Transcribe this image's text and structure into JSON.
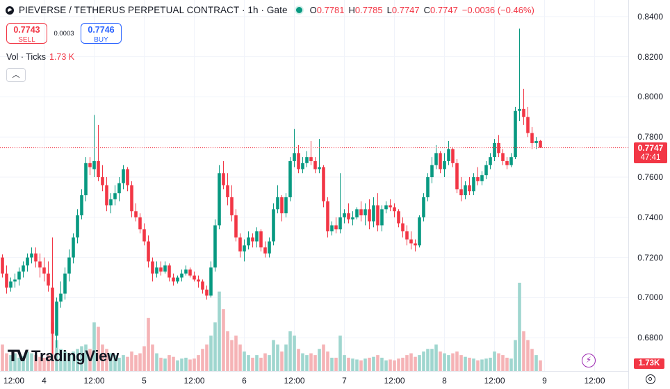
{
  "header": {
    "title": "PIEVERSE / TETHERUS PERPETUAL CONTRACT · 1h · Gate",
    "ohlc": {
      "o_label": "O",
      "o": "0.7781",
      "h_label": "H",
      "h": "0.7785",
      "l_label": "L",
      "l": "0.7747",
      "c_label": "C",
      "c": "0.7747",
      "change": "−0.0036 (−0.46%)"
    }
  },
  "trade": {
    "sell_price": "0.7743",
    "sell_label": "SELL",
    "spread": "0.0003",
    "buy_price": "0.7746",
    "buy_label": "BUY"
  },
  "volume_legend": {
    "label": "Vol · Ticks",
    "value": "1.73 K"
  },
  "collapse_icon": "chevron-up-icon",
  "last_price": {
    "price": "0.7747",
    "countdown": "47:41"
  },
  "volume_tag": "1.73K",
  "logo_text": "TradingView",
  "colors": {
    "up": "#089981",
    "down": "#f23645",
    "up_vol": "#9fd6cf",
    "down_vol": "#f5b3b6",
    "buy": "#2962ff"
  },
  "chart_data": {
    "type": "candlestick",
    "price_axis": {
      "ticks": [
        "0.8400",
        "0.8200",
        "0.8000",
        "0.7800",
        "0.7600",
        "0.7400",
        "0.7200",
        "0.7000",
        "0.6800"
      ],
      "range": [
        0.6735,
        0.8455
      ]
    },
    "time_axis": {
      "ticks": [
        {
          "i": -2,
          "label": "12:00"
        },
        {
          "i": 10,
          "label": "4"
        },
        {
          "i": 22,
          "label": "12:00"
        },
        {
          "i": 34,
          "label": "5"
        },
        {
          "i": 46,
          "label": "12:00"
        },
        {
          "i": 58,
          "label": "6"
        },
        {
          "i": 70,
          "label": "12:00"
        },
        {
          "i": 82,
          "label": "7"
        },
        {
          "i": 94,
          "label": "12:00"
        },
        {
          "i": 106,
          "label": "8"
        },
        {
          "i": 118,
          "label": "12:00"
        },
        {
          "i": 130,
          "label": "9"
        },
        {
          "i": 142,
          "label": "12:00"
        }
      ]
    },
    "candles": [
      [
        0.72,
        0.7215,
        0.71,
        0.712
      ],
      [
        0.712,
        0.716,
        0.702,
        0.705
      ],
      [
        0.705,
        0.71,
        0.703,
        0.708
      ],
      [
        0.708,
        0.712,
        0.705,
        0.709
      ],
      [
        0.709,
        0.715,
        0.706,
        0.713
      ],
      [
        0.713,
        0.718,
        0.71,
        0.716
      ],
      [
        0.716,
        0.722,
        0.713,
        0.72
      ],
      [
        0.72,
        0.725,
        0.717,
        0.722
      ],
      [
        0.722,
        0.725,
        0.715,
        0.718
      ],
      [
        0.718,
        0.722,
        0.71,
        0.715
      ],
      [
        0.715,
        0.72,
        0.708,
        0.712
      ],
      [
        0.712,
        0.718,
        0.703,
        0.706
      ],
      [
        0.705,
        0.73,
        0.672,
        0.682
      ],
      [
        0.681,
        0.7,
        0.675,
        0.698
      ],
      [
        0.698,
        0.708,
        0.695,
        0.702
      ],
      [
        0.702,
        0.715,
        0.699,
        0.712
      ],
      [
        0.712,
        0.724,
        0.708,
        0.72
      ],
      [
        0.72,
        0.732,
        0.717,
        0.73
      ],
      [
        0.73,
        0.744,
        0.727,
        0.741
      ],
      [
        0.741,
        0.754,
        0.739,
        0.751
      ],
      [
        0.751,
        0.77,
        0.748,
        0.767
      ],
      [
        0.767,
        0.77,
        0.761,
        0.765
      ],
      [
        0.764,
        0.791,
        0.76,
        0.768
      ],
      [
        0.768,
        0.786,
        0.758,
        0.76
      ],
      [
        0.76,
        0.766,
        0.753,
        0.756
      ],
      [
        0.756,
        0.76,
        0.743,
        0.746
      ],
      [
        0.746,
        0.752,
        0.742,
        0.749
      ],
      [
        0.749,
        0.756,
        0.746,
        0.752
      ],
      [
        0.752,
        0.76,
        0.748,
        0.757
      ],
      [
        0.757,
        0.766,
        0.754,
        0.764
      ],
      [
        0.764,
        0.765,
        0.753,
        0.756
      ],
      [
        0.756,
        0.758,
        0.74,
        0.743
      ],
      [
        0.743,
        0.747,
        0.738,
        0.74
      ],
      [
        0.74,
        0.742,
        0.732,
        0.734
      ],
      [
        0.734,
        0.737,
        0.726,
        0.728
      ],
      [
        0.728,
        0.731,
        0.715,
        0.718
      ],
      [
        0.718,
        0.72,
        0.708,
        0.712
      ],
      [
        0.712,
        0.718,
        0.71,
        0.715
      ],
      [
        0.715,
        0.718,
        0.711,
        0.713
      ],
      [
        0.713,
        0.718,
        0.712,
        0.716
      ],
      [
        0.716,
        0.717,
        0.708,
        0.71
      ],
      [
        0.71,
        0.712,
        0.706,
        0.708
      ],
      [
        0.708,
        0.711,
        0.707,
        0.71
      ],
      [
        0.71,
        0.714,
        0.708,
        0.712
      ],
      [
        0.712,
        0.716,
        0.711,
        0.714
      ],
      [
        0.714,
        0.715,
        0.71,
        0.711
      ],
      [
        0.711,
        0.713,
        0.708,
        0.709
      ],
      [
        0.709,
        0.711,
        0.705,
        0.708
      ],
      [
        0.708,
        0.709,
        0.702,
        0.704
      ],
      [
        0.704,
        0.706,
        0.699,
        0.701
      ],
      [
        0.701,
        0.718,
        0.7,
        0.715
      ],
      [
        0.715,
        0.739,
        0.713,
        0.736
      ],
      [
        0.736,
        0.766,
        0.734,
        0.762
      ],
      [
        0.762,
        0.768,
        0.754,
        0.756
      ],
      [
        0.756,
        0.762,
        0.746,
        0.75
      ],
      [
        0.75,
        0.756,
        0.738,
        0.741
      ],
      [
        0.741,
        0.744,
        0.728,
        0.73
      ],
      [
        0.73,
        0.732,
        0.72,
        0.723
      ],
      [
        0.723,
        0.729,
        0.718,
        0.726
      ],
      [
        0.726,
        0.733,
        0.724,
        0.73
      ],
      [
        0.73,
        0.732,
        0.725,
        0.728
      ],
      [
        0.728,
        0.735,
        0.725,
        0.733
      ],
      [
        0.733,
        0.734,
        0.723,
        0.725
      ],
      [
        0.725,
        0.728,
        0.72,
        0.722
      ],
      [
        0.722,
        0.73,
        0.72,
        0.728
      ],
      [
        0.728,
        0.747,
        0.726,
        0.744
      ],
      [
        0.744,
        0.756,
        0.742,
        0.75
      ],
      [
        0.75,
        0.751,
        0.738,
        0.742
      ],
      [
        0.742,
        0.752,
        0.74,
        0.75
      ],
      [
        0.75,
        0.77,
        0.748,
        0.768
      ],
      [
        0.768,
        0.784,
        0.765,
        0.772
      ],
      [
        0.772,
        0.776,
        0.762,
        0.764
      ],
      [
        0.764,
        0.77,
        0.762,
        0.767
      ],
      [
        0.767,
        0.773,
        0.765,
        0.77
      ],
      [
        0.77,
        0.778,
        0.766,
        0.768
      ],
      [
        0.768,
        0.77,
        0.762,
        0.764
      ],
      [
        0.764,
        0.779,
        0.762,
        0.765
      ],
      [
        0.765,
        0.766,
        0.745,
        0.748
      ],
      [
        0.748,
        0.75,
        0.73,
        0.733
      ],
      [
        0.733,
        0.738,
        0.731,
        0.736
      ],
      [
        0.736,
        0.74,
        0.732,
        0.734
      ],
      [
        0.734,
        0.762,
        0.732,
        0.74
      ],
      [
        0.74,
        0.744,
        0.737,
        0.742
      ],
      [
        0.742,
        0.747,
        0.737,
        0.739
      ],
      [
        0.739,
        0.743,
        0.736,
        0.74
      ],
      [
        0.74,
        0.745,
        0.739,
        0.744
      ],
      [
        0.744,
        0.748,
        0.738,
        0.741
      ],
      [
        0.741,
        0.747,
        0.736,
        0.744
      ],
      [
        0.744,
        0.749,
        0.734,
        0.738
      ],
      [
        0.738,
        0.75,
        0.735,
        0.746
      ],
      [
        0.746,
        0.752,
        0.733,
        0.736
      ],
      [
        0.736,
        0.746,
        0.733,
        0.744
      ],
      [
        0.744,
        0.748,
        0.742,
        0.746
      ],
      [
        0.746,
        0.749,
        0.743,
        0.745
      ],
      [
        0.745,
        0.747,
        0.74,
        0.743
      ],
      [
        0.743,
        0.744,
        0.735,
        0.737
      ],
      [
        0.737,
        0.74,
        0.73,
        0.733
      ],
      [
        0.733,
        0.736,
        0.726,
        0.729
      ],
      [
        0.729,
        0.733,
        0.724,
        0.727
      ],
      [
        0.727,
        0.729,
        0.723,
        0.726
      ],
      [
        0.726,
        0.741,
        0.725,
        0.74
      ],
      [
        0.74,
        0.752,
        0.738,
        0.75
      ],
      [
        0.75,
        0.762,
        0.748,
        0.76
      ],
      [
        0.76,
        0.77,
        0.757,
        0.766
      ],
      [
        0.766,
        0.776,
        0.764,
        0.772
      ],
      [
        0.772,
        0.773,
        0.762,
        0.764
      ],
      [
        0.764,
        0.772,
        0.76,
        0.768
      ],
      [
        0.768,
        0.778,
        0.766,
        0.774
      ],
      [
        0.774,
        0.775,
        0.765,
        0.767
      ],
      [
        0.767,
        0.769,
        0.752,
        0.754
      ],
      [
        0.754,
        0.76,
        0.748,
        0.751
      ],
      [
        0.751,
        0.758,
        0.749,
        0.756
      ],
      [
        0.756,
        0.76,
        0.751,
        0.753
      ],
      [
        0.753,
        0.762,
        0.751,
        0.76
      ],
      [
        0.76,
        0.765,
        0.756,
        0.758
      ],
      [
        0.758,
        0.763,
        0.756,
        0.761
      ],
      [
        0.761,
        0.768,
        0.759,
        0.766
      ],
      [
        0.766,
        0.772,
        0.764,
        0.77
      ],
      [
        0.77,
        0.779,
        0.768,
        0.777
      ],
      [
        0.777,
        0.781,
        0.77,
        0.772
      ],
      [
        0.772,
        0.774,
        0.766,
        0.768
      ],
      [
        0.768,
        0.77,
        0.764,
        0.766
      ],
      [
        0.766,
        0.772,
        0.765,
        0.77
      ],
      [
        0.77,
        0.795,
        0.769,
        0.793
      ],
      [
        0.793,
        0.834,
        0.788,
        0.794
      ],
      [
        0.794,
        0.804,
        0.786,
        0.79
      ],
      [
        0.79,
        0.795,
        0.78,
        0.782
      ],
      [
        0.782,
        0.785,
        0.774,
        0.777
      ],
      [
        0.777,
        0.78,
        0.774,
        0.778
      ],
      [
        0.7781,
        0.7785,
        0.7747,
        0.7747
      ]
    ],
    "volumes": [
      0.3,
      0.2,
      0.18,
      0.2,
      0.15,
      0.17,
      0.22,
      0.2,
      0.18,
      0.16,
      0.15,
      0.18,
      0.55,
      0.35,
      0.25,
      0.22,
      0.2,
      0.22,
      0.25,
      0.28,
      0.3,
      0.25,
      0.55,
      0.5,
      0.3,
      0.25,
      0.2,
      0.18,
      0.15,
      0.18,
      0.16,
      0.22,
      0.18,
      0.2,
      0.28,
      0.6,
      0.3,
      0.2,
      0.15,
      0.14,
      0.18,
      0.16,
      0.12,
      0.14,
      0.15,
      0.13,
      0.14,
      0.18,
      0.25,
      0.3,
      0.4,
      0.55,
      0.9,
      0.7,
      0.45,
      0.35,
      0.4,
      0.3,
      0.22,
      0.18,
      0.15,
      0.18,
      0.15,
      0.2,
      0.18,
      0.35,
      0.3,
      0.22,
      0.3,
      0.45,
      0.4,
      0.25,
      0.2,
      0.18,
      0.2,
      0.18,
      0.25,
      0.3,
      0.22,
      0.15,
      0.15,
      0.4,
      0.18,
      0.15,
      0.14,
      0.13,
      0.12,
      0.14,
      0.15,
      0.16,
      0.18,
      0.15,
      0.12,
      0.13,
      0.12,
      0.14,
      0.15,
      0.18,
      0.2,
      0.16,
      0.18,
      0.22,
      0.25,
      0.25,
      0.3,
      0.22,
      0.2,
      0.18,
      0.2,
      0.22,
      0.18,
      0.16,
      0.15,
      0.14,
      0.12,
      0.13,
      0.14,
      0.15,
      0.22,
      0.2,
      0.18,
      0.15,
      0.14,
      0.35,
      1.0,
      0.45,
      0.35,
      0.25,
      0.18,
      0.12
    ]
  }
}
